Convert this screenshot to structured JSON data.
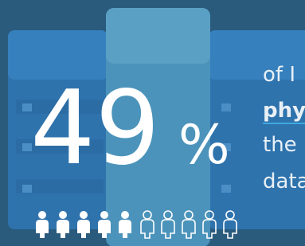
{
  "stat": {
    "number": "49",
    "unit": "%"
  },
  "lines": [
    "of I",
    "phy",
    "the",
    "data"
  ]
}
